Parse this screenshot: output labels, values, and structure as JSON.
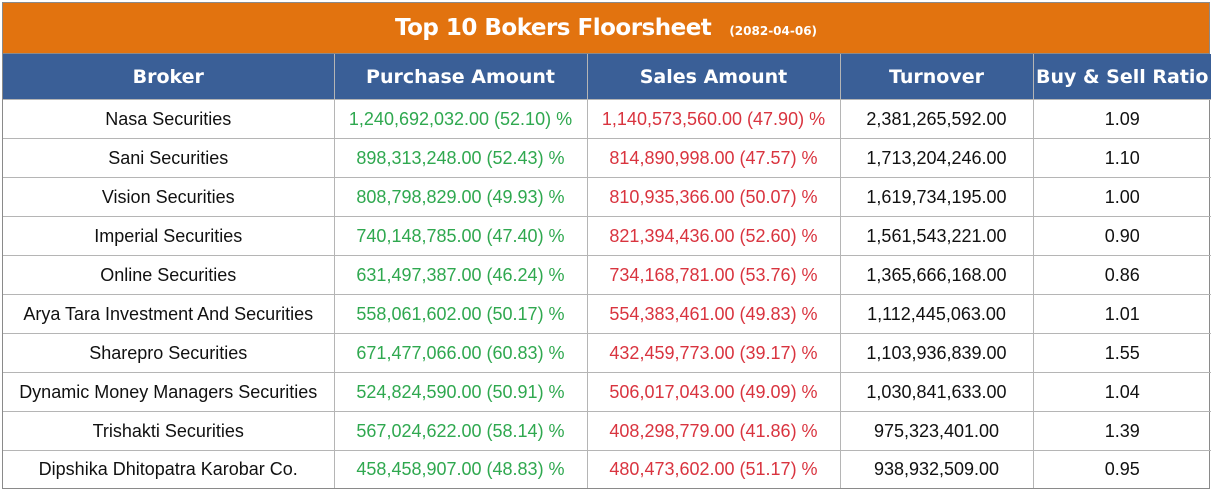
{
  "title": "Top 10 Bokers Floorsheet",
  "date": "(2082-04-06)",
  "colors": {
    "title_bg": "#e2730f",
    "header_bg": "#3a5f97",
    "buy": "#2fa84f",
    "sell": "#d9343f"
  },
  "columns": [
    "Broker",
    "Purchase Amount",
    "Sales Amount",
    "Turnover",
    "Buy & Sell Ratio"
  ],
  "rows": [
    {
      "broker": "Nasa Securities",
      "purchase": "1,240,692,032.00 (52.10) %",
      "sales": "1,140,573,560.00 (47.90) %",
      "turnover": "2,381,265,592.00",
      "ratio": "1.09"
    },
    {
      "broker": "Sani Securities",
      "purchase": "898,313,248.00 (52.43) %",
      "sales": "814,890,998.00 (47.57) %",
      "turnover": "1,713,204,246.00",
      "ratio": "1.10"
    },
    {
      "broker": "Vision Securities",
      "purchase": "808,798,829.00 (49.93) %",
      "sales": "810,935,366.00 (50.07) %",
      "turnover": "1,619,734,195.00",
      "ratio": "1.00"
    },
    {
      "broker": "Imperial Securities",
      "purchase": "740,148,785.00 (47.40) %",
      "sales": "821,394,436.00 (52.60) %",
      "turnover": "1,561,543,221.00",
      "ratio": "0.90"
    },
    {
      "broker": "Online Securities",
      "purchase": "631,497,387.00 (46.24) %",
      "sales": "734,168,781.00 (53.76) %",
      "turnover": "1,365,666,168.00",
      "ratio": "0.86"
    },
    {
      "broker": "Arya Tara Investment And Securities",
      "purchase": "558,061,602.00 (50.17) %",
      "sales": "554,383,461.00 (49.83) %",
      "turnover": "1,112,445,063.00",
      "ratio": "1.01"
    },
    {
      "broker": "Sharepro Securities",
      "purchase": "671,477,066.00 (60.83) %",
      "sales": "432,459,773.00 (39.17) %",
      "turnover": "1,103,936,839.00",
      "ratio": "1.55"
    },
    {
      "broker": "Dynamic Money Managers Securities",
      "purchase": "524,824,590.00 (50.91) %",
      "sales": "506,017,043.00 (49.09) %",
      "turnover": "1,030,841,633.00",
      "ratio": "1.04"
    },
    {
      "broker": "Trishakti Securities",
      "purchase": "567,024,622.00 (58.14) %",
      "sales": "408,298,779.00 (41.86) %",
      "turnover": "975,323,401.00",
      "ratio": "1.39"
    },
    {
      "broker": "Dipshika Dhitopatra Karobar Co.",
      "purchase": "458,458,907.00 (48.83) %",
      "sales": "480,473,602.00 (51.17) %",
      "turnover": "938,932,509.00",
      "ratio": "0.95"
    }
  ]
}
